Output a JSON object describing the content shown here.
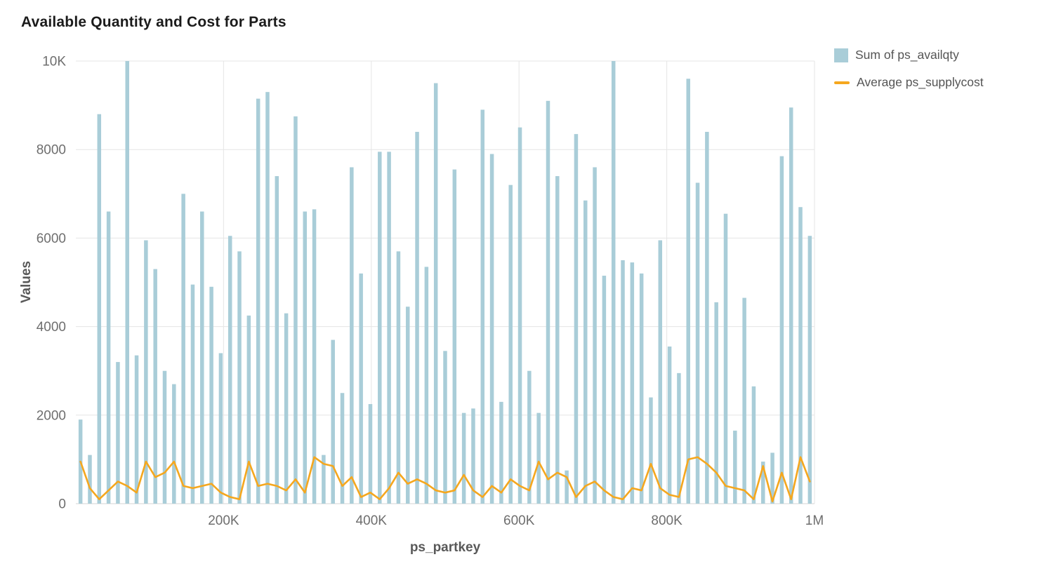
{
  "page": {
    "title": "Available Quantity and Cost for Parts"
  },
  "chart_data": {
    "type": "bar",
    "title": "Available Quantity and Cost for Parts",
    "xlabel": "ps_partkey",
    "ylabel": "Values",
    "xlim": [
      0,
      1000000
    ],
    "ylim": [
      0,
      10000
    ],
    "grid": true,
    "legend_position": "top-right",
    "colors": {
      "bar": "#a9cdd8",
      "line": "#f5a71e",
      "grid": "#e5e5e5",
      "baseline": "#d6d6d6",
      "tick_text": "#6e6e6e"
    },
    "x_ticks": [
      {
        "value": 200000,
        "label": "200K"
      },
      {
        "value": 400000,
        "label": "400K"
      },
      {
        "value": 600000,
        "label": "600K"
      },
      {
        "value": 800000,
        "label": "800K"
      },
      {
        "value": 1000000,
        "label": "1M"
      }
    ],
    "y_ticks": [
      {
        "value": 0,
        "label": "0"
      },
      {
        "value": 2000,
        "label": "2000"
      },
      {
        "value": 4000,
        "label": "4000"
      },
      {
        "value": 6000,
        "label": "6000"
      },
      {
        "value": 8000,
        "label": "8000"
      },
      {
        "value": 10000,
        "label": "10K"
      }
    ],
    "series": [
      {
        "name": "Sum of ps_availqty",
        "type": "bar",
        "color": "#a9cdd8",
        "values": [
          1900,
          1100,
          8800,
          6600,
          3200,
          10000,
          3350,
          5950,
          5300,
          3000,
          2700,
          7000,
          4950,
          6600,
          4900,
          3400,
          6050,
          5700,
          4250,
          9150,
          9300,
          7400,
          4300,
          8750,
          6600,
          6650,
          1100,
          3700,
          2500,
          7600,
          5200,
          2250,
          7950,
          7950,
          5700,
          4450,
          8400,
          5350,
          9500,
          3450,
          7550,
          2050,
          2150,
          8900,
          7900,
          2300,
          7200,
          8500,
          3000,
          2050,
          9100,
          7400,
          750,
          8350,
          6850,
          7600,
          5150,
          10000,
          5500,
          5450,
          5200,
          2400,
          5950,
          3550,
          2950,
          9600,
          7250,
          8400,
          4550,
          6550,
          1650,
          4650,
          2650,
          950,
          1150,
          7850,
          8950,
          6700,
          6050
        ]
      },
      {
        "name": "Average ps_supplycost",
        "type": "line",
        "color": "#f5a71e",
        "values": [
          950,
          350,
          100,
          300,
          500,
          400,
          250,
          950,
          600,
          700,
          950,
          400,
          350,
          400,
          450,
          250,
          150,
          100,
          950,
          400,
          450,
          400,
          300,
          550,
          250,
          1050,
          900,
          850,
          400,
          600,
          150,
          250,
          100,
          350,
          700,
          450,
          550,
          450,
          300,
          250,
          300,
          650,
          300,
          150,
          400,
          250,
          550,
          400,
          300,
          950,
          550,
          700,
          600,
          150,
          400,
          500,
          300,
          150,
          100,
          350,
          300,
          900,
          350,
          200,
          150,
          1000,
          1050,
          900,
          700,
          400,
          350,
          300,
          100,
          850,
          50,
          700,
          100,
          1050,
          500
        ]
      }
    ]
  }
}
